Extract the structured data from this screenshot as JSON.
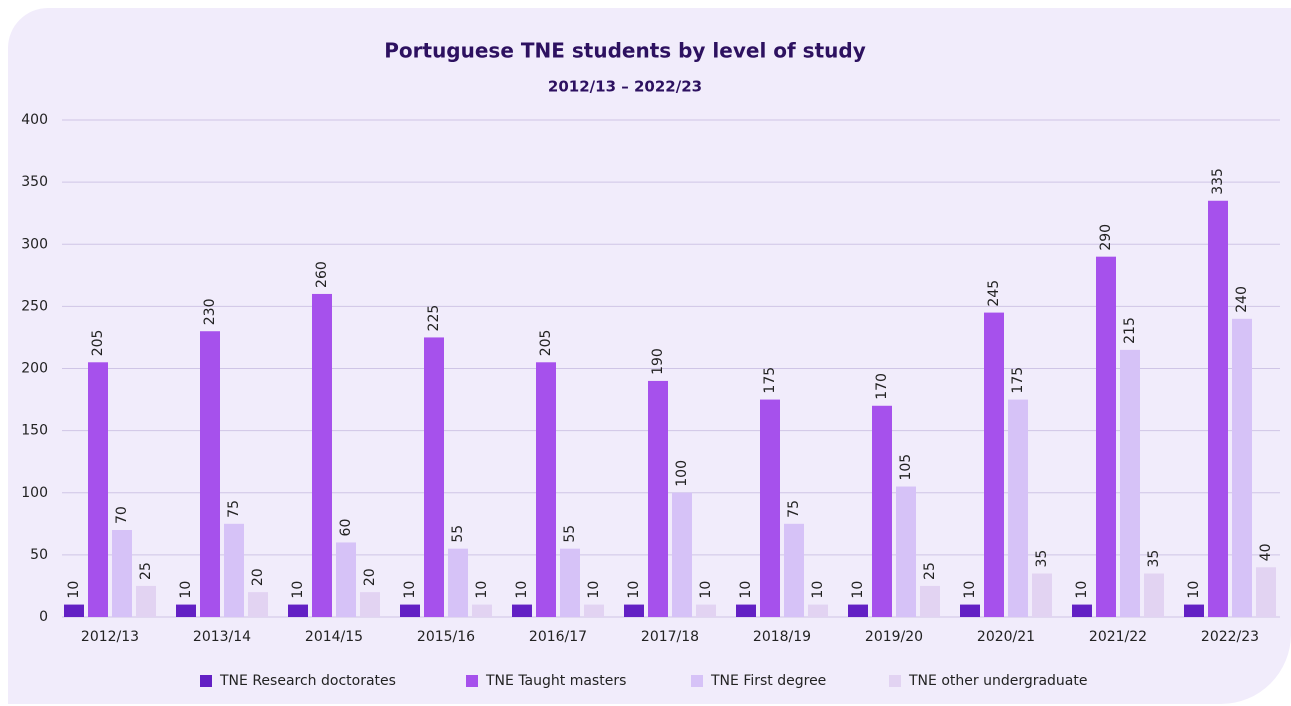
{
  "chart_data": {
    "type": "bar",
    "title": "Portuguese TNE students by level of study",
    "subtitle": "2012/13 – 2022/23",
    "categories": [
      "2012/13",
      "2013/14",
      "2014/15",
      "2015/16",
      "2016/17",
      "2017/18",
      "2018/19",
      "2019/20",
      "2020/21",
      "2021/22",
      "2022/23"
    ],
    "series": [
      {
        "name": "TNE Research doctorates",
        "color": "#6320c4",
        "values": [
          10,
          10,
          10,
          10,
          10,
          10,
          10,
          10,
          10,
          10,
          10
        ]
      },
      {
        "name": "TNE Taught masters",
        "color": "#a651ec",
        "values": [
          205,
          230,
          260,
          225,
          205,
          190,
          175,
          170,
          245,
          290,
          335
        ]
      },
      {
        "name": "TNE First degree",
        "color": "#d6c2f7",
        "values": [
          70,
          75,
          60,
          55,
          55,
          100,
          75,
          105,
          175,
          215,
          240
        ]
      },
      {
        "name": "TNE other undergraduate",
        "color": "#e2d3f2",
        "values": [
          25,
          20,
          20,
          10,
          10,
          10,
          10,
          25,
          35,
          35,
          40
        ]
      }
    ],
    "ylim": [
      0,
      400
    ],
    "yticks": [
      0,
      50,
      100,
      150,
      200,
      250,
      300,
      350,
      400
    ],
    "grid": true,
    "legend": "bottom"
  }
}
